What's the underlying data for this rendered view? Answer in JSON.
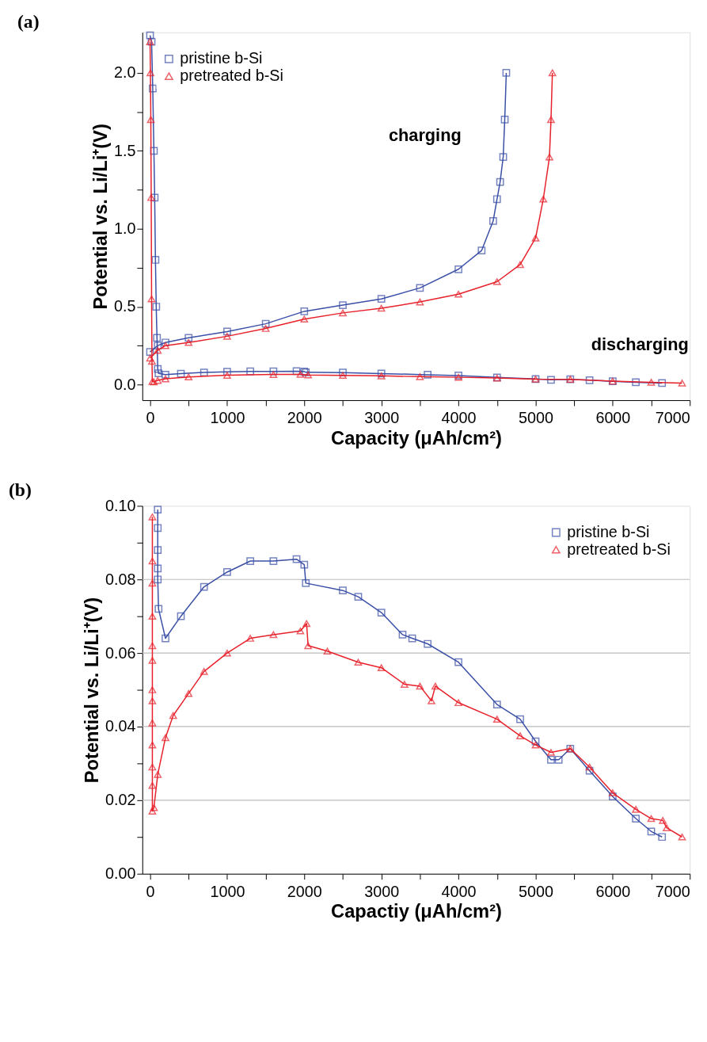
{
  "chart_data": [
    {
      "type": "line",
      "title": "(a)",
      "xlabel": "Capacity (μAh/cm²)",
      "ylabel": "Potential vs. Li/Li⁺(V)",
      "xlim": [
        -100,
        7000
      ],
      "xticks": [
        0,
        {
          "value": 500,
          "label": null
        },
        1000,
        {
          "value": 1500,
          "label": null
        },
        2000,
        {
          "value": 2500,
          "label": null
        },
        3000,
        {
          "value": 3500,
          "label": null
        },
        4000,
        {
          "value": 4500,
          "label": null
        },
        5000,
        {
          "value": 5500,
          "label": null
        },
        6000,
        {
          "value": 6500,
          "label": null
        },
        7000
      ],
      "ylim": [
        -0.1,
        2.26
      ],
      "yticks": [
        {
          "value": 0,
          "label": "0.0"
        },
        {
          "value": 0.25,
          "label": null
        },
        0.5,
        {
          "value": 0.75,
          "label": null
        },
        {
          "value": 1,
          "label": "1.0"
        },
        {
          "value": 1.25,
          "label": null
        },
        1.5,
        {
          "value": 1.75,
          "label": null
        },
        {
          "value": 2,
          "label": "2.0"
        }
      ],
      "grid": false,
      "legend": "top left",
      "line_style": "solid",
      "annotations": [
        "charging",
        "discharging"
      ],
      "series": [
        {
          "name": "pristine b-Si",
          "color": "#3a4fa6",
          "marker": "square",
          "x": [
            0,
            20,
            35,
            50,
            60,
            70,
            80,
            90,
            100,
            110,
            200,
            400,
            700,
            1000,
            1300,
            1600,
            1900,
            2000,
            2020,
            2500,
            3000,
            3600,
            4000,
            4500,
            5000,
            5200,
            5450,
            5700,
            6000,
            6300,
            6640
          ],
          "values": [
            2.24,
            2.2,
            1.9,
            1.5,
            1.2,
            0.8,
            0.5,
            0.3,
            0.1,
            0.072,
            0.064,
            0.07,
            0.078,
            0.082,
            0.085,
            0.085,
            0.086,
            0.084,
            0.079,
            0.077,
            0.071,
            0.063,
            0.058,
            0.046,
            0.036,
            0.031,
            0.034,
            0.028,
            0.021,
            0.015,
            0.01
          ]
        },
        {
          "color": "#3a4fa6",
          "marker": "square",
          "x": [
            0,
            100,
            200,
            500,
            1000,
            1500,
            2000,
            2500,
            3000,
            3500,
            4000,
            4300,
            4450,
            4500,
            4540,
            4580,
            4600,
            4620
          ],
          "values": [
            0.21,
            0.25,
            0.27,
            0.3,
            0.34,
            0.39,
            0.47,
            0.51,
            0.55,
            0.62,
            0.74,
            0.86,
            1.05,
            1.19,
            1.3,
            1.46,
            1.7,
            2.0
          ]
        },
        {
          "name": "pretreated b-Si",
          "color": "#e8202a",
          "marker": "triangle",
          "x": [
            0,
            5,
            10,
            15,
            20,
            25,
            30,
            50,
            100,
            200,
            500,
            1000,
            1600,
            1950,
            2050,
            2500,
            3000,
            3500,
            4000,
            4500,
            5000,
            5450,
            6000,
            6500,
            6900
          ],
          "values": [
            2.2,
            2.0,
            1.7,
            1.2,
            0.55,
            0.15,
            0.02,
            0.018,
            0.027,
            0.037,
            0.049,
            0.06,
            0.065,
            0.066,
            0.062,
            0.059,
            0.056,
            0.051,
            0.047,
            0.042,
            0.035,
            0.034,
            0.022,
            0.015,
            0.01
          ]
        },
        {
          "color": "#e8202a",
          "marker": "triangle",
          "x": [
            0,
            100,
            200,
            500,
            1000,
            1500,
            2000,
            2500,
            3000,
            3500,
            4000,
            4500,
            4800,
            5000,
            5100,
            5180,
            5200,
            5218
          ],
          "values": [
            0.17,
            0.22,
            0.25,
            0.27,
            0.31,
            0.36,
            0.42,
            0.46,
            0.49,
            0.53,
            0.58,
            0.66,
            0.77,
            0.94,
            1.19,
            1.46,
            1.7,
            2.0
          ]
        }
      ]
    },
    {
      "type": "line",
      "title": "(b)",
      "xlabel": "Capactiy (μAh/cm²)",
      "ylabel": "Potential vs. Li/Li⁺(V)",
      "xlim": [
        -100,
        7000
      ],
      "xticks": [
        0,
        {
          "value": 500,
          "label": null
        },
        1000,
        {
          "value": 1500,
          "label": null
        },
        2000,
        {
          "value": 2500,
          "label": null
        },
        3000,
        {
          "value": 3500,
          "label": null
        },
        4000,
        {
          "value": 4500,
          "label": null
        },
        5000,
        {
          "value": 5500,
          "label": null
        },
        6000,
        {
          "value": 6500,
          "label": null
        },
        7000
      ],
      "ylim": [
        0,
        0.1
      ],
      "yticks": [
        {
          "value": 0,
          "label": "0.00"
        },
        {
          "value": 0.01,
          "label": null
        },
        {
          "value": 0.02,
          "label": "0.02"
        },
        {
          "value": 0.03,
          "label": null
        },
        {
          "value": 0.04,
          "label": "0.04"
        },
        {
          "value": 0.05,
          "label": null
        },
        {
          "value": 0.06,
          "label": "0.06"
        },
        {
          "value": 0.07,
          "label": null
        },
        {
          "value": 0.08,
          "label": "0.08"
        },
        {
          "value": 0.09,
          "label": null
        },
        {
          "value": 0.1,
          "label": "0.10"
        }
      ],
      "grid": "y",
      "legend": "top right",
      "line_style": "solid",
      "series": [
        {
          "name": "pristine b-Si",
          "color": "#3a4fa6",
          "marker": "square",
          "x": [
            100,
            100,
            100,
            100,
            100,
            110,
            200,
            400,
            700,
            1000,
            1300,
            1600,
            1900,
            2000,
            2020,
            2500,
            2700,
            3000,
            3275,
            3400,
            3600,
            4000,
            4500,
            4800,
            5000,
            5200,
            5300,
            5450,
            5700,
            6000,
            6300,
            6500,
            6640
          ],
          "values": [
            0.099,
            0.094,
            0.088,
            0.083,
            0.08,
            0.072,
            0.064,
            0.07,
            0.078,
            0.082,
            0.085,
            0.085,
            0.0855,
            0.084,
            0.079,
            0.077,
            0.0753,
            0.071,
            0.065,
            0.064,
            0.0625,
            0.0575,
            0.046,
            0.042,
            0.036,
            0.031,
            0.031,
            0.034,
            0.028,
            0.021,
            0.015,
            0.0115,
            0.01
          ]
        },
        {
          "name": "pretreated b-Si",
          "color": "#e8202a",
          "marker": "triangle",
          "x": [
            30,
            30,
            30,
            30,
            30,
            30,
            30,
            30,
            30,
            30,
            30,
            30,
            30,
            50,
            100,
            200,
            300,
            500,
            700,
            1000,
            1300,
            1600,
            1950,
            2030,
            2050,
            2300,
            2700,
            3000,
            3300,
            3500,
            3650,
            3700,
            4000,
            4500,
            4800,
            5000,
            5200,
            5450,
            5700,
            6000,
            6300,
            6500,
            6650,
            6700,
            6900
          ],
          "values": [
            0.097,
            0.085,
            0.079,
            0.07,
            0.062,
            0.058,
            0.05,
            0.047,
            0.041,
            0.035,
            0.029,
            0.024,
            0.017,
            0.018,
            0.027,
            0.037,
            0.043,
            0.049,
            0.055,
            0.06,
            0.064,
            0.065,
            0.066,
            0.068,
            0.062,
            0.0605,
            0.0575,
            0.056,
            0.0515,
            0.051,
            0.047,
            0.051,
            0.0465,
            0.042,
            0.0375,
            0.035,
            0.033,
            0.034,
            0.029,
            0.022,
            0.0175,
            0.015,
            0.0145,
            0.0125,
            0.01
          ]
        }
      ]
    }
  ]
}
